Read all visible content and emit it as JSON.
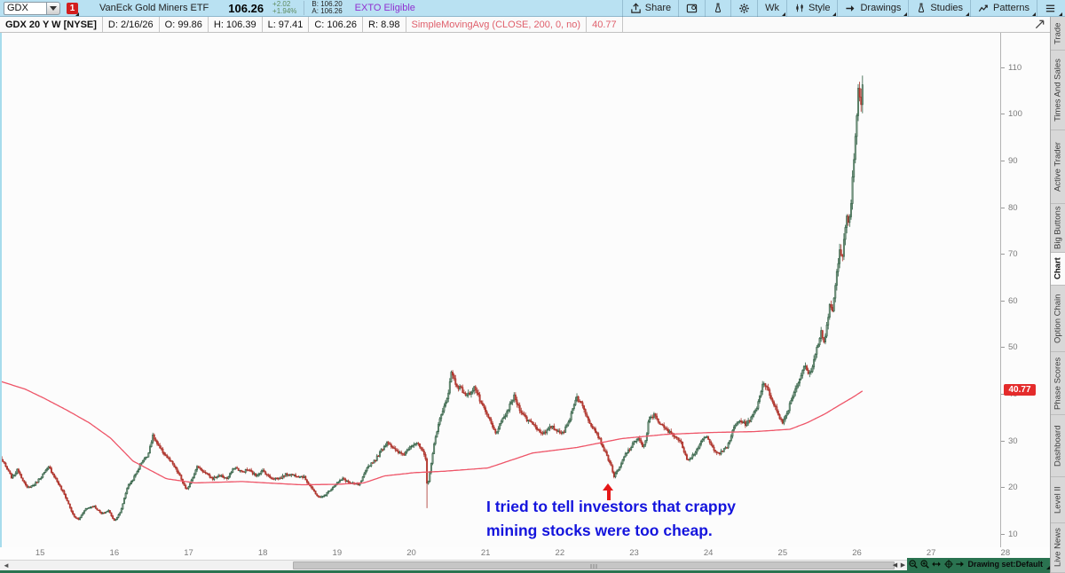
{
  "toolbar": {
    "symbol": "GDX",
    "badge": "1",
    "name": "VanEck Gold Miners ETF",
    "last": "106.26",
    "change": "+2.02",
    "change_pct": "+1.94%",
    "bid": "B: 106.20",
    "ask": "A: 106.26",
    "exto": "EXTO Eligible",
    "menus": [
      {
        "id": "share",
        "label": "Share",
        "icon": "share",
        "caret": false
      },
      {
        "id": "alerts-panel",
        "label": "",
        "icon": "panel",
        "caret": false
      },
      {
        "id": "analysis-tools",
        "label": "",
        "icon": "flask",
        "caret": false
      },
      {
        "id": "settings",
        "label": "",
        "icon": "gear",
        "caret": false
      },
      {
        "id": "timeframe",
        "label": "Wk",
        "icon": "",
        "caret": true
      },
      {
        "id": "style",
        "label": "Style",
        "icon": "candles",
        "caret": true
      },
      {
        "id": "drawings",
        "label": "Drawings",
        "icon": "arrow-right",
        "caret": true
      },
      {
        "id": "studies",
        "label": "Studies",
        "icon": "flask",
        "caret": true
      },
      {
        "id": "patterns",
        "label": "Patterns",
        "icon": "zigzag",
        "caret": true
      },
      {
        "id": "chart-menu",
        "label": "",
        "icon": "list",
        "caret": true
      }
    ]
  },
  "chart_header": {
    "cells": [
      {
        "name": "chart-title-cell",
        "text": "GDX 20 Y W [NYSE]",
        "style": "title"
      },
      {
        "name": "date-cell",
        "text": "D: 2/16/26",
        "style": ""
      },
      {
        "name": "open-cell",
        "text": "O: 99.86",
        "style": ""
      },
      {
        "name": "high-cell",
        "text": "H: 106.39",
        "style": ""
      },
      {
        "name": "low-cell",
        "text": "L: 97.41",
        "style": ""
      },
      {
        "name": "close-cell",
        "text": "C: 106.26",
        "style": ""
      },
      {
        "name": "range-cell",
        "text": "R: 8.98",
        "style": ""
      },
      {
        "name": "study-name-cell",
        "text": "SimpleMovingAvg (CLOSE, 200, 0, no)",
        "style": "study"
      },
      {
        "name": "study-value-cell",
        "text": "40.77",
        "style": "study"
      }
    ]
  },
  "annotation": {
    "line1": "I tried to tell investors that crappy",
    "line2": "mining stocks were too cheap.",
    "color": "#1414dd",
    "arrow_color": "#e51717"
  },
  "sidebar": {
    "tabs": [
      {
        "label": "Trade",
        "h": 38,
        "active": false
      },
      {
        "label": "Times And Sales",
        "h": 90,
        "active": false
      },
      {
        "label": "Active Trader",
        "h": 83,
        "active": false
      },
      {
        "label": "Big Buttons",
        "h": 55,
        "active": false
      },
      {
        "label": "Chart",
        "h": 37,
        "active": true
      },
      {
        "label": "Option Chain",
        "h": 75,
        "active": false
      },
      {
        "label": "Phase Scores",
        "h": 71,
        "active": false
      },
      {
        "label": "Dashboard",
        "h": 70,
        "active": false
      },
      {
        "label": "Level II",
        "h": 52,
        "active": false
      },
      {
        "label": "Live News",
        "h": 56,
        "active": false
      }
    ]
  },
  "bottom": {
    "drawing_set_label": "Drawing set:Default",
    "zoom_icons": [
      "zoom-out",
      "zoom-in",
      "pan-horizontal",
      "crosshair",
      "pan-right"
    ],
    "scrollbar": {
      "thumb_left": 330,
      "thumb_width": 678
    }
  },
  "chart_data": {
    "type": "candlestick",
    "symbol": "GDX",
    "timeframe": "weekly",
    "title": "GDX 20 Y W [NYSE]",
    "legend": [
      "SimpleMovingAvg (CLOSE, 200, 0, no)"
    ],
    "grid": false,
    "xlim": [
      2014.46,
      2027.93
    ],
    "ylim": [
      7.1,
      117.4
    ],
    "x_ticks": {
      "years": [
        2015,
        2016,
        2017,
        2018,
        2019,
        2020,
        2021,
        2022,
        2023,
        2024,
        2025,
        2026,
        2027,
        2028
      ],
      "labels": [
        "15",
        "16",
        "17",
        "18",
        "19",
        "20",
        "21",
        "22",
        "23",
        "24",
        "25",
        "26",
        "27",
        "28"
      ]
    },
    "y_ticks": [
      10,
      20,
      30,
      40,
      50,
      60,
      70,
      80,
      90,
      100,
      110
    ],
    "last_close": 106.26,
    "sma_last": 40.77,
    "peak_high": 113.6,
    "covid_spike_low": 15.5,
    "close_path": [
      [
        2014.46,
        26.5
      ],
      [
        2014.62,
        22.0
      ],
      [
        2014.7,
        23.8
      ],
      [
        2014.82,
        19.8
      ],
      [
        2014.92,
        20.5
      ],
      [
        2015.0,
        22.0
      ],
      [
        2015.12,
        24.3
      ],
      [
        2015.22,
        21.5
      ],
      [
        2015.34,
        18.0
      ],
      [
        2015.45,
        13.8
      ],
      [
        2015.52,
        13.0
      ],
      [
        2015.6,
        15.2
      ],
      [
        2015.72,
        16.0
      ],
      [
        2015.83,
        14.2
      ],
      [
        2015.92,
        15.0
      ],
      [
        2016.0,
        12.8
      ],
      [
        2016.08,
        14.5
      ],
      [
        2016.17,
        19.8
      ],
      [
        2016.28,
        22.5
      ],
      [
        2016.38,
        25.8
      ],
      [
        2016.44,
        26.5
      ],
      [
        2016.52,
        31.0
      ],
      [
        2016.6,
        28.5
      ],
      [
        2016.68,
        27.0
      ],
      [
        2016.78,
        25.0
      ],
      [
        2016.88,
        22.5
      ],
      [
        2016.97,
        19.2
      ],
      [
        2017.05,
        22.0
      ],
      [
        2017.12,
        24.5
      ],
      [
        2017.22,
        23.0
      ],
      [
        2017.32,
        21.8
      ],
      [
        2017.42,
        22.5
      ],
      [
        2017.52,
        21.8
      ],
      [
        2017.62,
        24.3
      ],
      [
        2017.72,
        23.2
      ],
      [
        2017.8,
        23.8
      ],
      [
        2017.9,
        22.5
      ],
      [
        2018.0,
        23.5
      ],
      [
        2018.1,
        22.0
      ],
      [
        2018.22,
        21.8
      ],
      [
        2018.32,
        22.8
      ],
      [
        2018.45,
        22.5
      ],
      [
        2018.55,
        22.2
      ],
      [
        2018.65,
        20.0
      ],
      [
        2018.72,
        18.2
      ],
      [
        2018.8,
        17.8
      ],
      [
        2018.88,
        19.0
      ],
      [
        2018.97,
        20.5
      ],
      [
        2019.08,
        21.8
      ],
      [
        2019.18,
        20.8
      ],
      [
        2019.3,
        20.5
      ],
      [
        2019.42,
        24.5
      ],
      [
        2019.52,
        26.0
      ],
      [
        2019.6,
        28.0
      ],
      [
        2019.68,
        29.8
      ],
      [
        2019.8,
        27.5
      ],
      [
        2019.9,
        27.0
      ],
      [
        2019.99,
        29.0
      ],
      [
        2020.07,
        29.5
      ],
      [
        2020.14,
        28.0
      ],
      [
        2020.19,
        26.0
      ],
      [
        2020.215,
        19.5
      ],
      [
        2020.25,
        23.5
      ],
      [
        2020.3,
        28.5
      ],
      [
        2020.36,
        33.5
      ],
      [
        2020.43,
        36.5
      ],
      [
        2020.5,
        40.5
      ],
      [
        2020.54,
        44.8
      ],
      [
        2020.6,
        42.0
      ],
      [
        2020.67,
        41.0
      ],
      [
        2020.75,
        39.5
      ],
      [
        2020.85,
        41.5
      ],
      [
        2020.95,
        37.5
      ],
      [
        2021.05,
        34.5
      ],
      [
        2021.13,
        31.5
      ],
      [
        2021.2,
        33.5
      ],
      [
        2021.3,
        36.5
      ],
      [
        2021.38,
        39.5
      ],
      [
        2021.45,
        37.0
      ],
      [
        2021.55,
        34.5
      ],
      [
        2021.63,
        33.8
      ],
      [
        2021.72,
        32.0
      ],
      [
        2021.8,
        31.5
      ],
      [
        2021.88,
        33.0
      ],
      [
        2021.97,
        32.0
      ],
      [
        2022.05,
        31.8
      ],
      [
        2022.12,
        34.0
      ],
      [
        2022.22,
        39.5
      ],
      [
        2022.3,
        37.5
      ],
      [
        2022.4,
        34.0
      ],
      [
        2022.5,
        31.5
      ],
      [
        2022.6,
        27.8
      ],
      [
        2022.68,
        25.0
      ],
      [
        2022.73,
        22.3
      ],
      [
        2022.8,
        24.0
      ],
      [
        2022.88,
        27.0
      ],
      [
        2022.97,
        28.8
      ],
      [
        2023.05,
        30.8
      ],
      [
        2023.12,
        28.5
      ],
      [
        2023.16,
        30.0
      ],
      [
        2023.2,
        34.8
      ],
      [
        2023.28,
        35.5
      ],
      [
        2023.35,
        33.5
      ],
      [
        2023.45,
        32.0
      ],
      [
        2023.55,
        31.0
      ],
      [
        2023.63,
        29.5
      ],
      [
        2023.72,
        25.8
      ],
      [
        2023.8,
        27.0
      ],
      [
        2023.9,
        29.5
      ],
      [
        2023.97,
        31.0
      ],
      [
        2024.05,
        28.5
      ],
      [
        2024.15,
        27.2
      ],
      [
        2024.25,
        28.5
      ],
      [
        2024.35,
        33.0
      ],
      [
        2024.42,
        34.3
      ],
      [
        2024.5,
        33.5
      ],
      [
        2024.58,
        34.8
      ],
      [
        2024.66,
        37.5
      ],
      [
        2024.74,
        42.8
      ],
      [
        2024.82,
        40.0
      ],
      [
        2024.88,
        38.0
      ],
      [
        2024.95,
        35.0
      ],
      [
        2025.0,
        34.0
      ],
      [
        2025.06,
        36.0
      ],
      [
        2025.13,
        39.5
      ],
      [
        2025.22,
        43.0
      ],
      [
        2025.3,
        46.0
      ],
      [
        2025.36,
        44.0
      ],
      [
        2025.42,
        47.0
      ],
      [
        2025.47,
        50.5
      ],
      [
        2025.52,
        53.5
      ],
      [
        2025.56,
        50.5
      ],
      [
        2025.6,
        55.0
      ],
      [
        2025.64,
        60.0
      ],
      [
        2025.67,
        57.0
      ],
      [
        2025.71,
        63.0
      ],
      [
        2025.74,
        67.0
      ],
      [
        2025.77,
        71.0
      ],
      [
        2025.8,
        69.0
      ],
      [
        2025.83,
        74.5
      ],
      [
        2025.86,
        78.5
      ],
      [
        2025.89,
        76.0
      ],
      [
        2025.92,
        80.5
      ],
      [
        2025.94,
        86.0
      ],
      [
        2025.965,
        91.0
      ],
      [
        2025.985,
        96.5
      ],
      [
        2026.005,
        101.5
      ],
      [
        2026.025,
        108.0
      ],
      [
        2026.045,
        100.5
      ],
      [
        2026.065,
        103.0
      ],
      [
        2026.09,
        106.26
      ]
    ],
    "sma200_path": [
      [
        2014.46,
        42.7
      ],
      [
        2014.8,
        41.0
      ],
      [
        2015.06,
        39.0
      ],
      [
        2015.36,
        36.5
      ],
      [
        2015.66,
        33.8
      ],
      [
        2015.95,
        30.5
      ],
      [
        2016.25,
        25.6
      ],
      [
        2016.7,
        21.8
      ],
      [
        2017.09,
        20.9
      ],
      [
        2017.72,
        21.2
      ],
      [
        2018.05,
        20.9
      ],
      [
        2018.52,
        20.5
      ],
      [
        2019.0,
        20.6
      ],
      [
        2019.36,
        20.9
      ],
      [
        2019.64,
        22.4
      ],
      [
        2020.04,
        23.1
      ],
      [
        2020.44,
        23.4
      ],
      [
        2021.03,
        24.1
      ],
      [
        2021.63,
        27.3
      ],
      [
        2022.23,
        28.5
      ],
      [
        2022.83,
        30.4
      ],
      [
        2023.42,
        31.3
      ],
      [
        2024.02,
        31.7
      ],
      [
        2024.62,
        31.9
      ],
      [
        2025.1,
        32.4
      ],
      [
        2025.33,
        33.8
      ],
      [
        2025.57,
        35.7
      ],
      [
        2025.81,
        38.0
      ],
      [
        2025.95,
        39.3
      ],
      [
        2026.09,
        40.77
      ]
    ],
    "colors": {
      "up_fill": "#93ab98",
      "up_stroke": "#2c5c40",
      "down_fill": "#c23d34",
      "down_stroke": "#a93129",
      "sma": "#ee5568",
      "background": "#fcfcfc"
    }
  }
}
